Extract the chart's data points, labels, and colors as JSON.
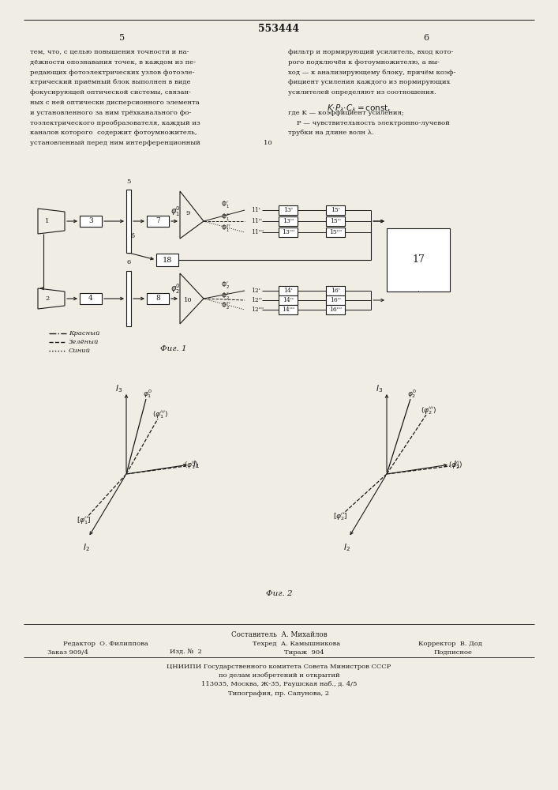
{
  "page_number_center": "553444",
  "page_col_left": "5",
  "page_col_right": "6",
  "bg_color": "#f0ede4",
  "text_color": "#1a1a1a",
  "text_left": [
    "тем, что, с целью повышения точности и на-",
    "дёжности опознавания точек, в каждом из пе-",
    "редающих фотоэлектрических узлов фотоэле-",
    "ктрический приёмный блок выполнен в виде",
    "фокусирующей оптической системы, связан-",
    "ных с ней оптически дисперсионного элемента",
    "и установленного за ним трёхканального фо-",
    "тоэлектрического преобразователя, каждый из",
    "каналов которого  содержит фотоумножитель,",
    "установленный перед ним интерференционный"
  ],
  "text_right": [
    "фильтр и нормирующий усилитель, вход кото-",
    "рого подключён к фотоумножителю, а вы-",
    "ход — к анализирующему блоку, причём коэф-",
    "фициент усиления каждого из нормирующих",
    "усилителей определяют из соотношения.",
    "",
    "где K — коэффициент усиления;",
    "    P — чувствительность электронно-лучевой",
    "трубки на длине волн λ."
  ],
  "fig1_caption": "Фиг. 1",
  "fig2_caption": "Фиг. 2",
  "legend_items": [
    {
      "label": "Красный",
      "style": "dashdot"
    },
    {
      "label": "Зелёный",
      "style": "dashed"
    },
    {
      "label": "Синий",
      "style": "dotted"
    }
  ],
  "footer_lines": [
    "Составитель  А. Михайлов",
    "Редактор  О. Филиппова",
    "Техред  А. Камышникова",
    "Корректор  В. Дод",
    "Заказ 909/4",
    "Изд. №  2",
    "Тираж  904",
    "Подписное",
    "ЦНИИПИ Государственного комитета Совета Министров СССР",
    "по делам изобретений и открытий",
    "113035, Москва, Ж-35, Раушская наб., д. 4/5",
    "Типография, пр. Сапунова, 2"
  ]
}
